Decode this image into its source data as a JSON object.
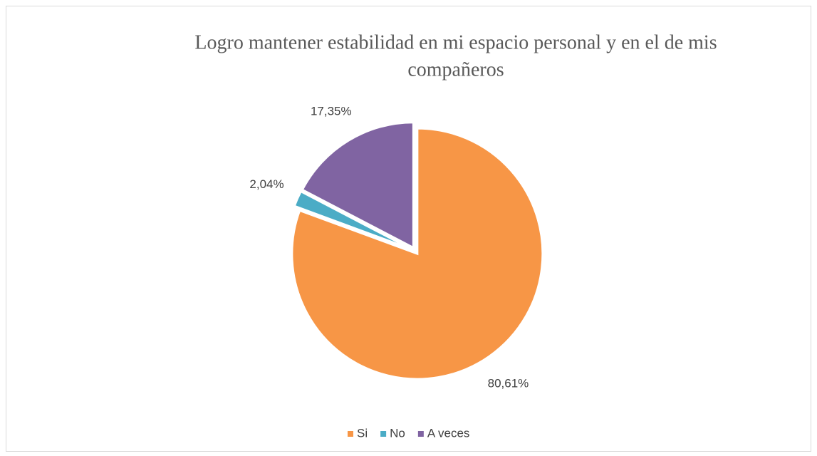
{
  "chart_data": {
    "type": "pie",
    "title": [
      "Logro mantener estabilidad en mi espacio personal y en el de mis",
      "compañeros"
    ],
    "categories": [
      "Si",
      "No",
      "A veces"
    ],
    "values": [
      80.61,
      2.04,
      17.35
    ],
    "value_labels": [
      "80,61%",
      "2,04%",
      "17,35%"
    ],
    "colors": [
      "#f79646",
      "#4bacc6",
      "#8064a2"
    ],
    "legend": "bottom"
  }
}
